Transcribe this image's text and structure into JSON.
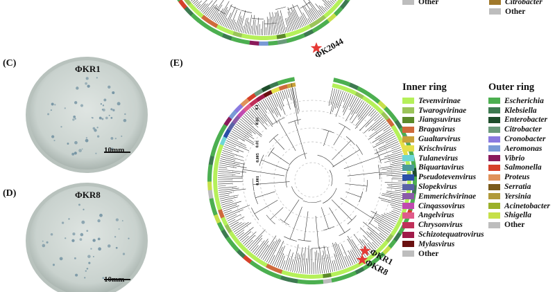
{
  "panels": {
    "C": "(C)",
    "D": "(D)",
    "E": "(E)"
  },
  "plates": {
    "kr1": {
      "title": "ΦKR1",
      "scale": "10mm"
    },
    "kr8": {
      "title": "ΦKR8",
      "scale": "10mm"
    }
  },
  "top_legend": {
    "left_other": {
      "label": "Other",
      "color": "#bdbdbd"
    },
    "right_citrobacter": {
      "label": "Citrobacter",
      "color": "#a0782a"
    },
    "right_other": {
      "label": "Other",
      "color": "#bdbdbd"
    }
  },
  "tree_top": {
    "phage_label": "ΦK2044",
    "star_color": "#e53935"
  },
  "tree_e": {
    "phage_labels": [
      "ΦKR1",
      "ΦKR8"
    ],
    "star_color": "#e53935",
    "distance_labels": [
      "0.1",
      "0.05",
      "0.01",
      "0.005",
      "0.001"
    ]
  },
  "inner_ring": {
    "title": "Inner ring",
    "items": [
      {
        "label": "Tevenvirinae",
        "color": "#b5f05a"
      },
      {
        "label": "Twarogvirinae",
        "color": "#9bc45a"
      },
      {
        "label": "Jiangsuvirus",
        "color": "#5b8a2a"
      },
      {
        "label": "Bragavirus",
        "color": "#cf6a3c"
      },
      {
        "label": "Gualtarvirus",
        "color": "#c9a23a"
      },
      {
        "label": "Krischvirus",
        "color": "#e6e04a"
      },
      {
        "label": "Tulanevirus",
        "color": "#6fd6d6"
      },
      {
        "label": "Biquartavirus",
        "color": "#4a9a9a"
      },
      {
        "label": "Pseudotevenvirus",
        "color": "#2a4fa8"
      },
      {
        "label": "Slopekvirus",
        "color": "#5a62a6"
      },
      {
        "label": "Emmerichvirinae",
        "color": "#8a5aa8"
      },
      {
        "label": "Cinqassovirus",
        "color": "#c04ab0"
      },
      {
        "label": "Angelvirus",
        "color": "#e05a8a"
      },
      {
        "label": "Chrysonvirus",
        "color": "#c0305a"
      },
      {
        "label": "Schizotequatrovirus",
        "color": "#a01a4a"
      },
      {
        "label": "Mylasvirus",
        "color": "#6a1010"
      },
      {
        "label": "Other",
        "color": "#bdbdbd",
        "plain": true
      }
    ]
  },
  "outer_ring": {
    "title": "Outer ring",
    "items": [
      {
        "label": "Escherichia",
        "color": "#4caf50"
      },
      {
        "label": "Klebsiella",
        "color": "#3d7a50"
      },
      {
        "label": "Enterobacter",
        "color": "#1e4d2b"
      },
      {
        "label": "Citrobacter",
        "color": "#6a9a7a"
      },
      {
        "label": "Cronobacter",
        "color": "#8a7ae0"
      },
      {
        "label": "Aeromonas",
        "color": "#7a9ad6"
      },
      {
        "label": "Vibrio",
        "color": "#8a1a5a"
      },
      {
        "label": "Salmonella",
        "color": "#d6402a"
      },
      {
        "label": "Proteus",
        "color": "#e0925a"
      },
      {
        "label": "Serratia",
        "color": "#7a5a1a"
      },
      {
        "label": "Yersinia",
        "color": "#b09a3a"
      },
      {
        "label": "Acinetobacter",
        "color": "#9ab02a"
      },
      {
        "label": "Shigella",
        "color": "#c6e04a"
      },
      {
        "label": "Other",
        "color": "#bdbdbd",
        "plain": true
      }
    ]
  }
}
